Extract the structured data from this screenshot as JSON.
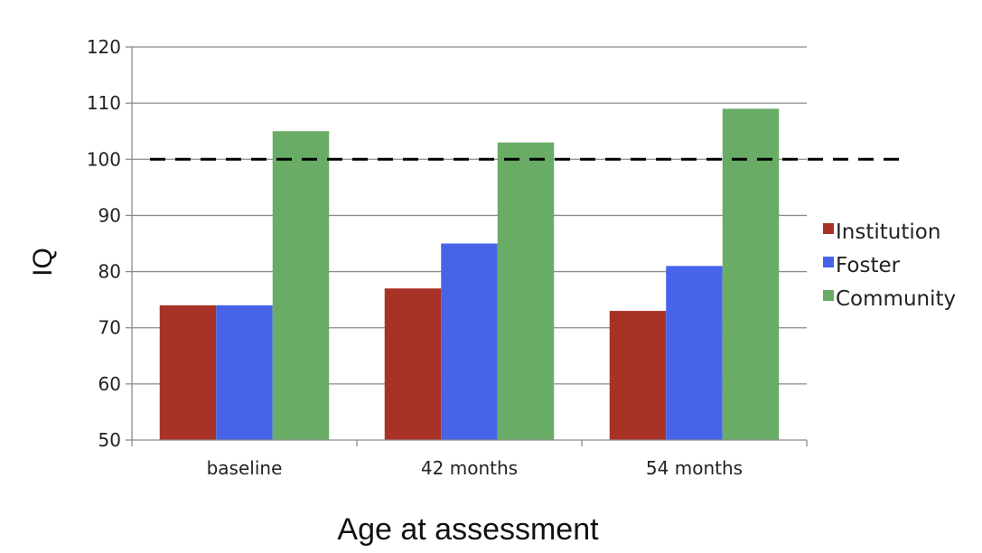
{
  "chart_data": {
    "type": "bar",
    "title": "",
    "xlabel": "Age at assessment",
    "ylabel": "IQ",
    "categories": [
      "baseline",
      "42 months",
      "54 months"
    ],
    "series": [
      {
        "name": "Institution",
        "color": "#a93226",
        "values": [
          74,
          77,
          73
        ]
      },
      {
        "name": "Foster",
        "color": "#4763e8",
        "values": [
          74,
          85,
          81
        ]
      },
      {
        "name": "Community",
        "color": "#69ac66",
        "values": [
          105,
          103,
          109
        ]
      }
    ],
    "ylim": [
      50,
      120
    ],
    "yticks": [
      50,
      60,
      70,
      80,
      90,
      100,
      110,
      120
    ],
    "grid": true,
    "legend_position": "right",
    "reference_line": {
      "value": 100,
      "style": "dashed",
      "color": "#000000"
    }
  }
}
